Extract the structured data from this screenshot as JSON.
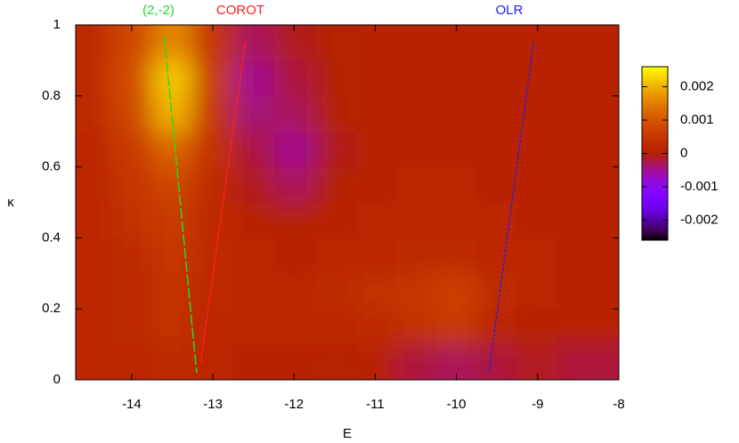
{
  "chart_data": {
    "type": "heatmap",
    "xlabel": "E",
    "ylabel": "κ",
    "xlim": [
      -14.69,
      -8
    ],
    "xticks": [
      -14,
      -13,
      -12,
      -11,
      -10,
      -9,
      -8
    ],
    "ylim": [
      0,
      1
    ],
    "yticks": [
      0,
      0.2,
      0.4,
      0.6,
      0.8,
      1
    ],
    "zlim": [
      -0.0026,
      0.0026
    ],
    "zticks": [
      -0.002,
      -0.001,
      0,
      0.001,
      0.002
    ],
    "x": [
      -14.5,
      -14,
      -13.5,
      -13,
      -12.5,
      -12,
      -11.5,
      -11,
      -10.5,
      -10,
      -9.5,
      -9,
      -8.5
    ],
    "y": [
      0.05,
      0.15,
      0.25,
      0.35,
      0.45,
      0.55,
      0.65,
      0.75,
      0.85,
      0.95
    ],
    "z": [
      [
        0.0002,
        0.0002,
        0.0003,
        0.0002,
        0.0001,
        0.0001,
        0,
        0.0001,
        -0.0002,
        -0.0003,
        -0.0002,
        -0.0001,
        -0.0002
      ],
      [
        0.0002,
        0.0003,
        0.0004,
        0.0002,
        0.0002,
        0.0002,
        0.0002,
        0.0003,
        0.0004,
        0.0006,
        0.0002,
        0.0001,
        0.0001
      ],
      [
        0.0002,
        0.0003,
        0.0004,
        0.0003,
        0.0002,
        0.0002,
        0.0003,
        0.0004,
        0.0005,
        0.0007,
        0.0003,
        0.0002,
        0.0001
      ],
      [
        0.0002,
        0.0003,
        0.0005,
        0.0003,
        0.0002,
        0.0001,
        0.0002,
        0.0002,
        0.0003,
        0.0003,
        0.0002,
        0.0002,
        0.0001
      ],
      [
        0.0002,
        0.0004,
        0.0006,
        0.0003,
        0.0001,
        0,
        0.0001,
        0.0002,
        0.0002,
        0.0002,
        0.0002,
        0.0001,
        0.0001
      ],
      [
        0.0002,
        0.0005,
        0.0008,
        0.0003,
        -0.0001,
        -0.0003,
        0,
        0.0001,
        0.0002,
        0.0002,
        0.0001,
        0.0001,
        0.0001
      ],
      [
        0.0002,
        0.0006,
        0.0012,
        0.0004,
        -0.0002,
        -0.0005,
        -0.0001,
        0.0001,
        0.0001,
        0.0001,
        0.0001,
        0.0001,
        0.0001
      ],
      [
        0.0003,
        0.0008,
        0.002,
        0.0005,
        -0.0004,
        -0.0003,
        0,
        0.0001,
        0.0001,
        0.0001,
        0.0001,
        0.0001,
        0.0001
      ],
      [
        0.0003,
        0.0009,
        0.0022,
        0.0006,
        -0.0005,
        -0.0002,
        0,
        0.0001,
        0.0001,
        0.0001,
        0.0001,
        0.0001,
        0.0001
      ],
      [
        0.0003,
        0.0008,
        0.0016,
        0.0005,
        -0.0003,
        -0.0001,
        0,
        0.0001,
        0.0001,
        0.0001,
        0.0001,
        0.0001,
        0.0001
      ]
    ],
    "series": [
      {
        "name": "(2,-2)",
        "color": "#22dd22",
        "x": [
          -13.6,
          -13.2
        ],
        "y": [
          0.97,
          0.02
        ]
      },
      {
        "name": "COROT",
        "color": "#ff2020",
        "x": [
          -12.6,
          -13.15
        ],
        "y": [
          0.95,
          0.05
        ]
      },
      {
        "name": "OLR",
        "color": "#2020ee",
        "x": [
          -9.05,
          -9.6
        ],
        "y": [
          0.95,
          0.02
        ]
      }
    ]
  }
}
